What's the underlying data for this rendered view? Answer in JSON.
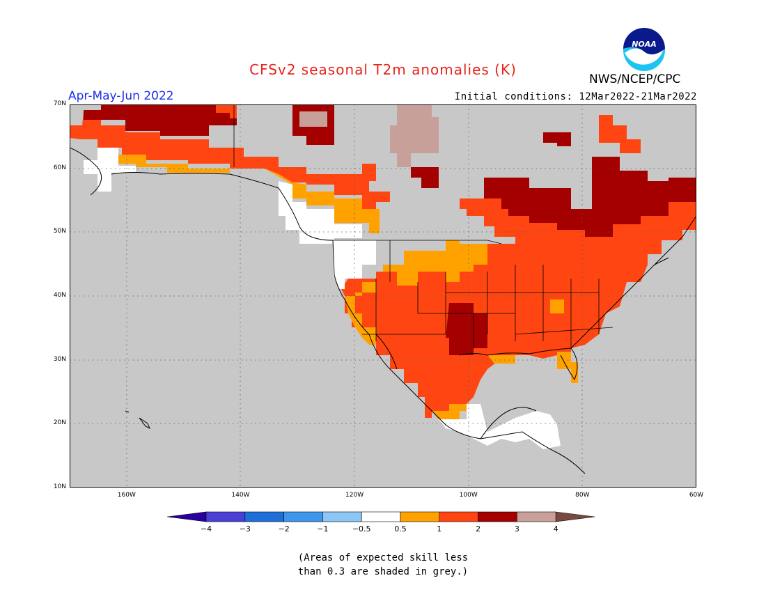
{
  "title": "CFSv2 seasonal T2m anomalies (K)",
  "season": "Apr-May-Jun 2022",
  "initial_conditions": "Initial conditions: 12Mar2022-21Mar2022",
  "agency": "NWS/NCEP/CPC",
  "logo_text": "NOAA",
  "map": {
    "projection": "lat-lon",
    "lon_range": [
      -170,
      -60
    ],
    "lat_range": [
      10,
      70
    ],
    "lat_labels": [
      "10N",
      "20N",
      "30N",
      "40N",
      "50N",
      "60N",
      "70N"
    ],
    "lon_labels": [
      "160W",
      "140W",
      "120W",
      "100W",
      "80W",
      "60W"
    ],
    "background_color": "#c8c8c8"
  },
  "legend": {
    "tick_labels": [
      "-4",
      "-3",
      "-2",
      "-1",
      "-0.5",
      "0.5",
      "1",
      "2",
      "3",
      "4"
    ],
    "colors": [
      "#2a00a0",
      "#4a3fd6",
      "#1f6fd8",
      "#3d96ec",
      "#8cc6f4",
      "#ffffff",
      "#ffa200",
      "#ff4612",
      "#a40000",
      "#c8a09a",
      "#7a4a40"
    ]
  },
  "note_line1": "(Areas of expected skill less",
  "note_line2": "than 0.3 are shaded in grey.)"
}
